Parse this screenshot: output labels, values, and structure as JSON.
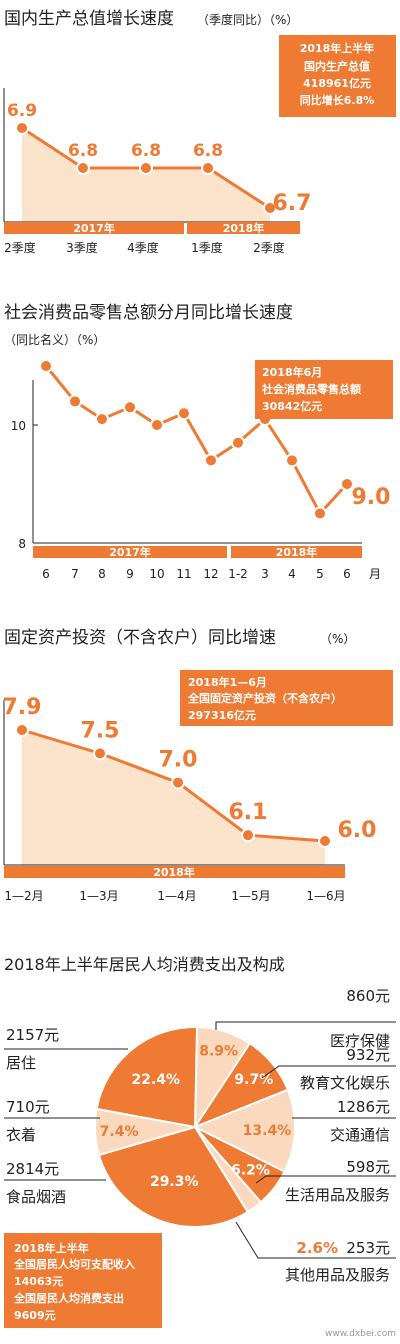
{
  "colors": {
    "orange": "#EE7A33",
    "light_fill": "#FBD9BE",
    "pale_fill": "#FCE3CC",
    "text": "#222222",
    "white": "#FFFFFF"
  },
  "watermark": "www.dxbei.com",
  "chart_data": [
    {
      "type": "area",
      "title": "国内生产总值增长速度",
      "unit": "（季度同比）（%）",
      "x": [
        "2季度",
        "3季度",
        "4季度",
        "1季度",
        "2季度"
      ],
      "values": [
        6.9,
        6.8,
        6.8,
        6.8,
        6.7
      ],
      "value_labels": [
        "6.9",
        "6.8",
        "6.8",
        "6.8",
        "6.7"
      ],
      "year_groups": [
        {
          "label": "2017年",
          "from": 0,
          "to": 2
        },
        {
          "label": "2018年",
          "from": 3,
          "to": 4
        }
      ],
      "ylim": [
        6.6,
        7.0
      ],
      "infobox": [
        "2018年上半年",
        "国内生产总值",
        "418961亿元",
        "同比增长6.8%"
      ]
    },
    {
      "type": "line",
      "title": "社会消费品零售总额分月同比增长速度",
      "subtitle": "（同比名义）（%）",
      "x": [
        "6",
        "7",
        "8",
        "9",
        "10",
        "11",
        "12",
        "1-2",
        "3",
        "4",
        "5",
        "6"
      ],
      "x_unit": "月",
      "values": [
        11.0,
        10.4,
        10.1,
        10.3,
        10.0,
        10.2,
        9.4,
        9.7,
        10.1,
        9.4,
        8.5,
        9.0
      ],
      "last_label": "9.0",
      "yticks": [
        "10",
        "8"
      ],
      "ylim": [
        7.9,
        11.6
      ],
      "year_groups": [
        {
          "label": "2017年",
          "from": 0,
          "to": 6
        },
        {
          "label": "2018年",
          "from": 7,
          "to": 11
        }
      ],
      "infobox": [
        "2018年6月",
        "社会消费品零售总额",
        "30842亿元"
      ]
    },
    {
      "type": "area",
      "title": "固定资产投资（不含农户）同比增速",
      "unit": "（%）",
      "x": [
        "1—2月",
        "1—3月",
        "1—4月",
        "1—5月",
        "1—6月"
      ],
      "values": [
        7.9,
        7.5,
        7.0,
        6.1,
        6.0
      ],
      "value_labels": [
        "7.9",
        "7.5",
        "7.0",
        "6.1",
        "6.0"
      ],
      "year_groups": [
        {
          "label": "2018年",
          "from": 0,
          "to": 4
        }
      ],
      "ylim": [
        5.5,
        8.2
      ],
      "infobox": [
        "2018年1—6月",
        "全国固定资产投资（不含农户）",
        "297316亿元"
      ]
    },
    {
      "type": "pie",
      "title": "2018年上半年居民人均消费支出及构成",
      "slices": [
        {
          "name": "医疗保健",
          "amount": "860元",
          "percent": 8.9,
          "label": "8.9%",
          "side": "right"
        },
        {
          "name": "教育文化娱乐",
          "amount": "932元",
          "percent": 9.7,
          "label": "9.7%",
          "side": "right"
        },
        {
          "name": "交通通信",
          "amount": "1286元",
          "percent": 13.4,
          "label": "13.4%",
          "side": "right"
        },
        {
          "name": "生活用品及服务",
          "amount": "598元",
          "percent": 6.2,
          "label": "6.2%",
          "side": "right"
        },
        {
          "name": "其他用品及服务",
          "amount": "253元",
          "percent": 2.6,
          "label": "2.6%",
          "side": "right"
        },
        {
          "name": "食品烟酒",
          "amount": "2814元",
          "percent": 29.3,
          "label": "29.3%",
          "side": "left"
        },
        {
          "name": "衣着",
          "amount": "710元",
          "percent": 7.4,
          "label": "7.4%",
          "side": "left"
        },
        {
          "name": "居住",
          "amount": "2157元",
          "percent": 22.4,
          "label": "22.4%",
          "side": "left"
        }
      ],
      "infobox": [
        "2018年上半年",
        "全国居民人均可支配收入",
        "14063元",
        "全国居民人均消费支出",
        "9609元"
      ]
    }
  ]
}
